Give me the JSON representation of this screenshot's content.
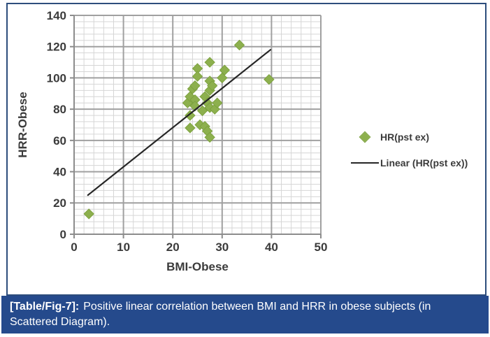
{
  "figure": {
    "caption_label": "[Table/Fig-7]:",
    "caption_text": "Positive linear correlation between BMI and HRR in obese subjects (in Scattered Diagram).",
    "caption_bg_color": "#254a8c",
    "frame_border_color": "#2d4d7c"
  },
  "chart_data": {
    "type": "scatter",
    "title": "",
    "xlabel": "BMI-Obese",
    "ylabel": "HRR-Obese",
    "xlim": [
      0,
      50
    ],
    "ylim": [
      0,
      140
    ],
    "x_major_ticks": [
      0,
      10,
      20,
      30,
      40,
      50
    ],
    "y_major_ticks": [
      0,
      20,
      40,
      60,
      80,
      100,
      120,
      140
    ],
    "x_minor_step": 2,
    "y_minor_step": 4,
    "grid": true,
    "legend_position": "right-outside",
    "colors": {
      "marker": "#8db04e",
      "marker_edge": "#7da23f",
      "trendline": "#262626",
      "grid_minor": "#d6d6d6",
      "grid_major": "#a0a0a0",
      "axis": "#8c8c8c",
      "tick_label": "#3b3b3b"
    },
    "series": [
      {
        "name": "HR(pst ex)",
        "kind": "scatter",
        "marker": "diamond",
        "points": [
          [
            3,
            13
          ],
          [
            23,
            84
          ],
          [
            23.5,
            88
          ],
          [
            23.5,
            76
          ],
          [
            23.5,
            68
          ],
          [
            24,
            93
          ],
          [
            24.5,
            95
          ],
          [
            24.5,
            86
          ],
          [
            24.5,
            82
          ],
          [
            25,
            106
          ],
          [
            25,
            101
          ],
          [
            25.5,
            70
          ],
          [
            26,
            79
          ],
          [
            26.5,
            88
          ],
          [
            26.5,
            69
          ],
          [
            27,
            84
          ],
          [
            27,
            66
          ],
          [
            27.5,
            110
          ],
          [
            27.5,
            98
          ],
          [
            27.5,
            92
          ],
          [
            27.5,
            81
          ],
          [
            27.5,
            62
          ],
          [
            28,
            95
          ],
          [
            28.5,
            80
          ],
          [
            29,
            84
          ],
          [
            30,
            100
          ],
          [
            30.5,
            105
          ],
          [
            33.5,
            121
          ],
          [
            39.5,
            99
          ]
        ]
      },
      {
        "name": "Linear (HR(pst ex))",
        "kind": "line",
        "x1": 2.8,
        "y1": 25,
        "x2": 39.8,
        "y2": 118
      }
    ]
  }
}
